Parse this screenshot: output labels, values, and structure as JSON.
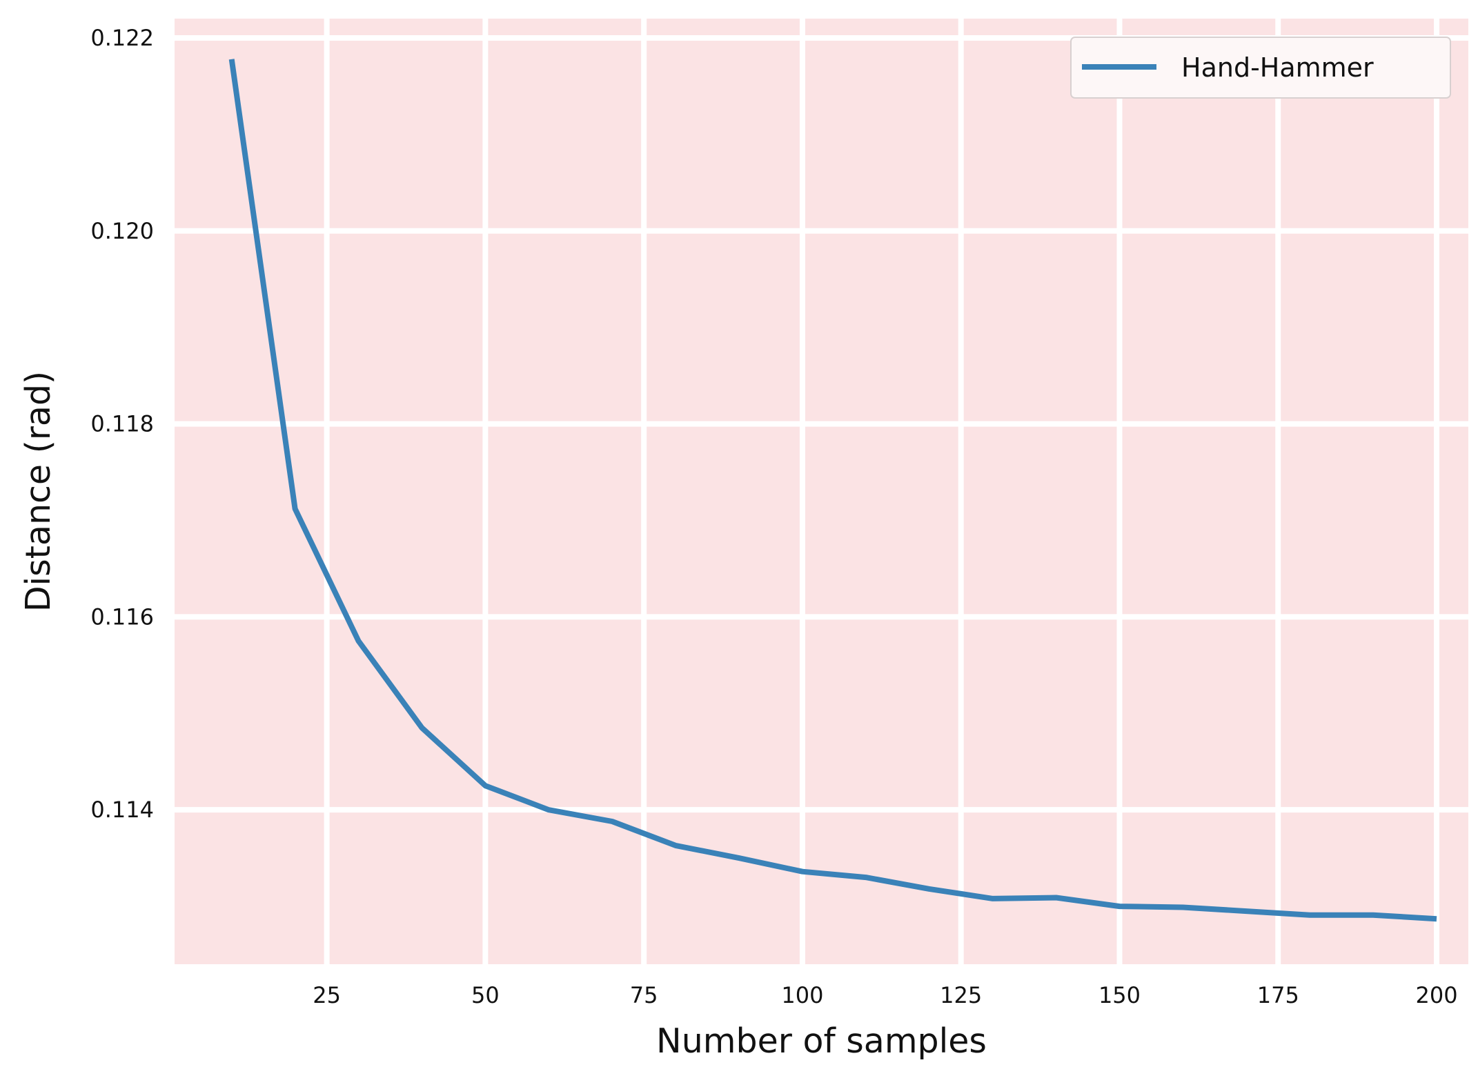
{
  "chart_data": {
    "type": "line",
    "title": "",
    "xlabel": "Number of samples",
    "ylabel": "Distance (rad)",
    "xlim": [
      1,
      205
    ],
    "ylim": [
      0.1124,
      0.1222
    ],
    "x_ticks": [
      25,
      50,
      75,
      100,
      125,
      150,
      175,
      200
    ],
    "x_tick_labels": [
      "25",
      "50",
      "75",
      "100",
      "125",
      "150",
      "175",
      "200"
    ],
    "y_ticks": [
      0.114,
      0.116,
      0.118,
      0.12,
      0.122
    ],
    "y_tick_labels": [
      "0.114",
      "0.116",
      "0.118",
      "0.120",
      "0.122"
    ],
    "grid": true,
    "legend_position": "top-right",
    "colors": {
      "plot_background": "#fbe3e4",
      "grid": "#ffffff",
      "series": "#3a82b8",
      "legend_background": "#fdf7f7",
      "legend_border": "#d8d0d0"
    },
    "x": [
      10,
      20,
      30,
      40,
      50,
      60,
      70,
      80,
      90,
      100,
      110,
      120,
      130,
      140,
      150,
      160,
      170,
      180,
      190,
      200
    ],
    "series": [
      {
        "name": "Hand-Hammer",
        "values": [
          0.12178,
          0.11712,
          0.11575,
          0.11485,
          0.11425,
          0.114,
          0.11388,
          0.11363,
          0.1135,
          0.11336,
          0.1133,
          0.11318,
          0.11308,
          0.11309,
          0.113,
          0.11299,
          0.11295,
          0.11291,
          0.11291,
          0.11287
        ]
      }
    ]
  }
}
